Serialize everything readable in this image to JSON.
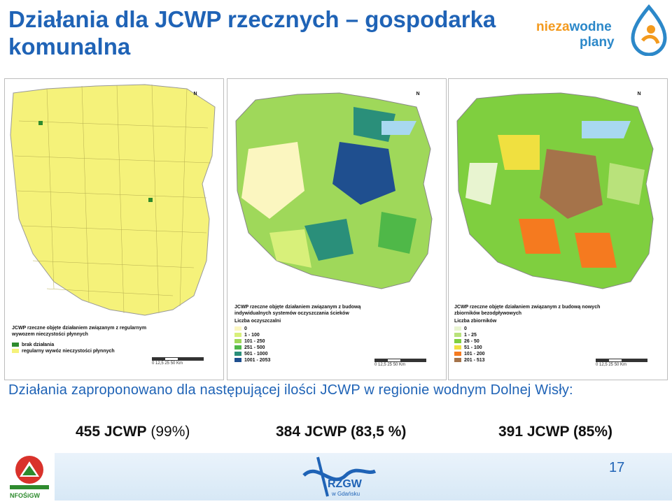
{
  "title": "Działania dla JCWP rzecznych – gospodarka komunalna",
  "logo": {
    "word1a": "nieza",
    "word1b": "wodne",
    "word2": "plany"
  },
  "maps": [
    {
      "legend_title": "JCWP rzeczne objęte działaniem związanym z regularnym wywozem nieczystości płynnych",
      "items": [
        {
          "label": "brak działania",
          "color": "#2e8b2e"
        },
        {
          "label": "regularny wywóz nieczystości płynnych",
          "color": "#f5f27a"
        }
      ]
    },
    {
      "legend_title": "JCWP rzeczne objęte działaniem związanym z budową indywidualnych systemów oczyszczania ścieków",
      "subtitle": "Liczba oczyszczalni",
      "items": [
        {
          "label": "0",
          "color": "#fbf6c0"
        },
        {
          "label": "1 - 100",
          "color": "#d8f07a"
        },
        {
          "label": "101 - 250",
          "color": "#9fd85a"
        },
        {
          "label": "251 - 500",
          "color": "#4fb848"
        },
        {
          "label": "501 - 1000",
          "color": "#2a8f7a"
        },
        {
          "label": "1001 - 2053",
          "color": "#1f4f8f"
        }
      ]
    },
    {
      "legend_title": "JCWP rzeczne objęte działaniem związanym z budową nowych zbiorników bezodpływowych",
      "subtitle": "Liczba zbiorników",
      "items": [
        {
          "label": "0",
          "color": "#e8f4d0"
        },
        {
          "label": "1 - 25",
          "color": "#b9e27b"
        },
        {
          "label": "26 - 50",
          "color": "#7fcf3f"
        },
        {
          "label": "51 - 100",
          "color": "#f0e040"
        },
        {
          "label": "101 - 200",
          "color": "#f57a1f"
        },
        {
          "label": "201 - 513",
          "color": "#a5734a"
        }
      ]
    }
  ],
  "scale_labels": "0  12,5  25        50 Km",
  "north": "N",
  "description": "Działania zaproponowano dla następującej ilości JCWP w regionie wodnym Dolnej Wisły:",
  "counts": [
    {
      "bold": "455 JCWP",
      "rest": " (99%)"
    },
    {
      "bold": "384 JCWP (83,5 %)",
      "rest": ""
    },
    {
      "bold": "391 JCWP (85%)",
      "rest": ""
    }
  ],
  "footer": {
    "rzgw": "RZGW",
    "rzgw_sub": "w Gdańsku",
    "nfos": "NFOŚiGW",
    "page": "17"
  }
}
